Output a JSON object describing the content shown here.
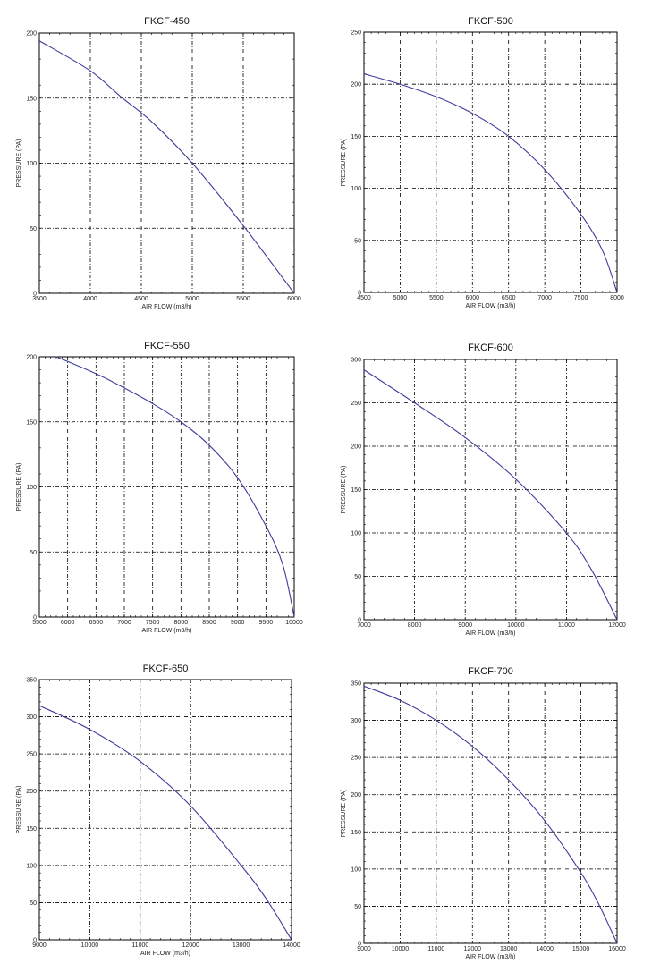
{
  "chart_data": [
    {
      "type": "line",
      "title": "FKCF-450",
      "xlabel": "AIR FLOW (m3/h)",
      "ylabel": "PRESSURE (PA)",
      "xlim": [
        3500,
        6000
      ],
      "ylim": [
        0,
        200
      ],
      "xticks": [
        3500,
        4000,
        4500,
        5000,
        5500,
        6000
      ],
      "yticks": [
        0,
        50,
        100,
        150,
        200
      ],
      "grid": true,
      "series": [
        {
          "x": [
            3500,
            4000,
            4300,
            4600,
            5000,
            5500,
            6000
          ],
          "y": [
            194,
            171,
            151,
            132,
            100,
            52,
            0
          ]
        }
      ]
    },
    {
      "type": "line",
      "title": "FKCF-500",
      "xlabel": "AIR FLOW (m3/h)",
      "ylabel": "PRESSURE (PA)",
      "xlim": [
        4500,
        8000
      ],
      "ylim": [
        0,
        250
      ],
      "xticks": [
        4500,
        5000,
        5500,
        6000,
        6500,
        7000,
        7500,
        8000
      ],
      "yticks": [
        0,
        50,
        100,
        150,
        200,
        250
      ],
      "grid": true,
      "series": [
        {
          "x": [
            4500,
            5000,
            5500,
            6000,
            6500,
            7000,
            7500,
            7800,
            8000
          ],
          "y": [
            210,
            200,
            188,
            172,
            150,
            118,
            75,
            40,
            0
          ]
        }
      ]
    },
    {
      "type": "line",
      "title": "FKCF-550",
      "xlabel": "AIR FLOW (m3/h)",
      "ylabel": "PRESSURE (PA)",
      "xlim": [
        5500,
        10000
      ],
      "ylim": [
        0,
        200
      ],
      "xticks": [
        5500,
        6000,
        6500,
        7000,
        7500,
        8000,
        8500,
        9000,
        9500,
        10000
      ],
      "yticks": [
        0,
        50,
        100,
        150,
        200
      ],
      "grid": true,
      "series": [
        {
          "x": [
            5800,
            6500,
            7000,
            7500,
            8000,
            8500,
            9000,
            9500,
            9800,
            10000
          ],
          "y": [
            200,
            187,
            176,
            164,
            150,
            132,
            107,
            70,
            40,
            0
          ]
        }
      ]
    },
    {
      "type": "line",
      "title": "FKCF-600",
      "xlabel": "AIR FLOW (m3/h)",
      "ylabel": "PRESSURE (PA)",
      "xlim": [
        7000,
        12000
      ],
      "ylim": [
        0,
        300
      ],
      "xticks": [
        7000,
        8000,
        9000,
        10000,
        11000,
        12000
      ],
      "yticks": [
        0,
        50,
        100,
        150,
        200,
        250,
        300
      ],
      "grid": true,
      "series": [
        {
          "x": [
            7000,
            8000,
            9000,
            10000,
            11000,
            11500,
            12000
          ],
          "y": [
            288,
            250,
            210,
            162,
            100,
            57,
            0
          ]
        }
      ]
    },
    {
      "type": "line",
      "title": "FKCF-650",
      "xlabel": "AIR FLOW (m3/h)",
      "ylabel": "PRESSURE (PA)",
      "xlim": [
        9000,
        14000
      ],
      "ylim": [
        0,
        350
      ],
      "xticks": [
        9000,
        10000,
        11000,
        12000,
        13000,
        14000
      ],
      "yticks": [
        0,
        50,
        100,
        150,
        200,
        250,
        300,
        350
      ],
      "grid": true,
      "series": [
        {
          "x": [
            9000,
            10000,
            11000,
            12000,
            13000,
            13500,
            14000
          ],
          "y": [
            315,
            283,
            240,
            180,
            100,
            55,
            0
          ]
        }
      ]
    },
    {
      "type": "line",
      "title": "FKCF-700",
      "xlabel": "AIR FLOW (m3/h)",
      "ylabel": "PRESSURE (PA)",
      "xlim": [
        9000,
        16000
      ],
      "ylim": [
        0,
        350
      ],
      "xticks": [
        9000,
        10000,
        11000,
        12000,
        13000,
        14000,
        15000,
        16000
      ],
      "yticks": [
        0,
        50,
        100,
        150,
        200,
        250,
        300,
        350
      ],
      "grid": true,
      "series": [
        {
          "x": [
            9000,
            10000,
            11000,
            12000,
            13000,
            14000,
            15000,
            15500,
            16000
          ],
          "y": [
            346,
            327,
            300,
            265,
            220,
            165,
            95,
            52,
            0
          ]
        }
      ]
    }
  ]
}
